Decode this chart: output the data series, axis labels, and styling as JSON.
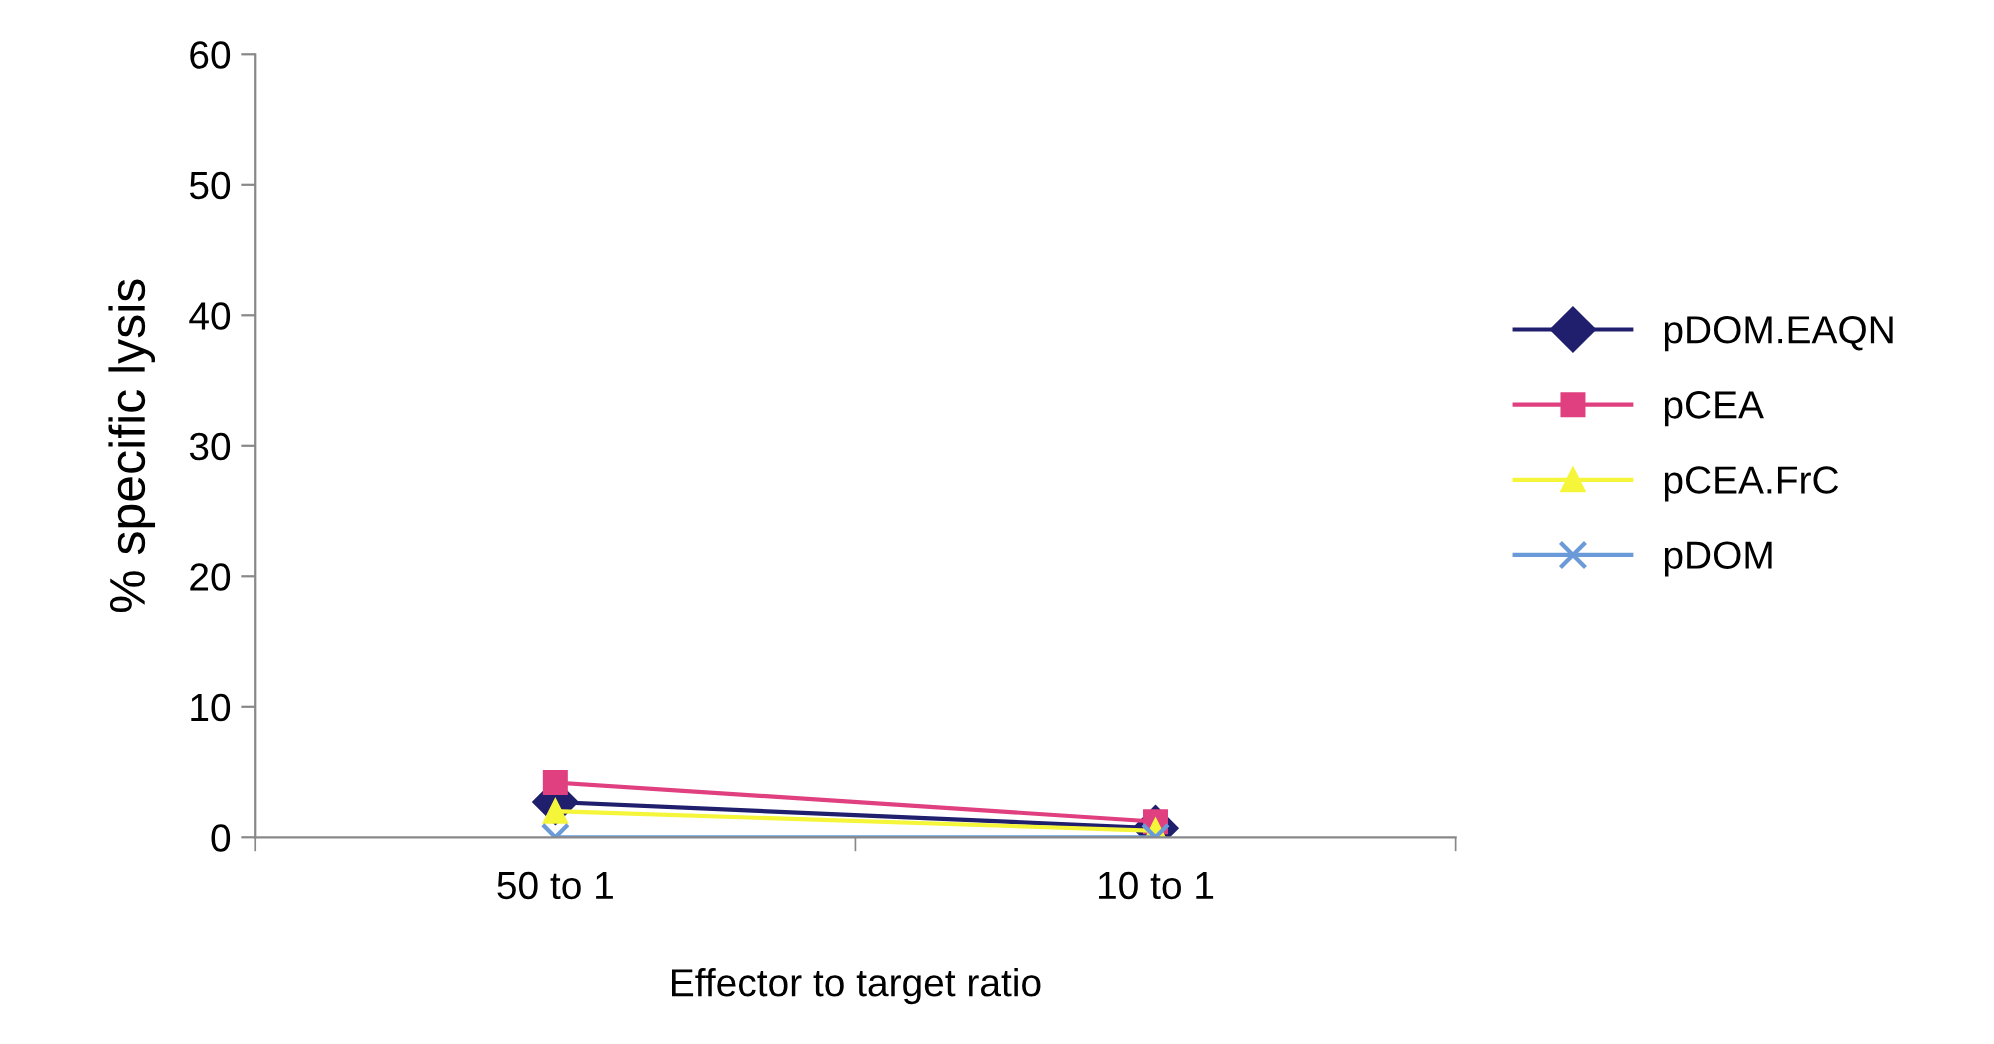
{
  "chart_data": {
    "type": "line",
    "xlabel": "Effector to target ratio",
    "ylabel": "% specific lysis",
    "categories": [
      "50 to 1",
      "10 to 1"
    ],
    "series": [
      {
        "name": "pDOM.EAQN",
        "color": "#1f1f6e",
        "marker": "diamond",
        "values": [
          2.7,
          0.7
        ]
      },
      {
        "name": "pCEA",
        "color": "#e0407f",
        "marker": "square",
        "values": [
          4.2,
          1.2
        ]
      },
      {
        "name": "pCEA.FrC",
        "color": "#f5f53a",
        "marker": "triangle",
        "values": [
          2.0,
          0.5
        ]
      },
      {
        "name": "pDOM",
        "color": "#6a9ad8",
        "marker": "cross",
        "values": [
          0,
          0
        ]
      }
    ],
    "ylim": [
      0,
      60
    ],
    "yticks": [
      0,
      10,
      20,
      30,
      40,
      50,
      60
    ],
    "grid": false,
    "legend": "right"
  }
}
